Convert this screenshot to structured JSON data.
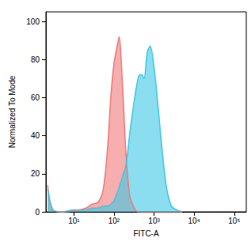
{
  "chart_data": {
    "type": "area",
    "x_label": "FITC-A",
    "y_label": "Normalized To Mode",
    "log": "x",
    "grid": false,
    "x": [
      2.2,
      3,
      5,
      10,
      20,
      28,
      40,
      54,
      70,
      83,
      100,
      115,
      135,
      160,
      200,
      250,
      340,
      400,
      450,
      490,
      560,
      680,
      800,
      1050,
      1300,
      1600,
      2000,
      2500,
      3000,
      5000
    ],
    "series": [
      {
        "color": "#f07878",
        "values": [
          14,
          1,
          0,
          0.5,
          2,
          4,
          5,
          12,
          35,
          60,
          78,
          85,
          92,
          70,
          30,
          8,
          1,
          0,
          0,
          0,
          0,
          0,
          0,
          0,
          0,
          0,
          0,
          0,
          0,
          0
        ]
      },
      {
        "color": "#3cc8e4",
        "values": [
          12,
          1,
          0,
          1,
          1,
          2,
          2,
          3,
          3,
          4,
          6,
          9,
          13,
          18,
          25,
          42,
          62,
          70,
          72,
          72,
          70,
          84,
          87,
          72,
          52,
          32,
          14,
          5,
          2,
          0
        ]
      }
    ],
    "xlim": [
      2,
      200000
    ],
    "xticks": [
      {
        "value": 10,
        "label": "10¹"
      },
      {
        "value": 100,
        "label": "10²"
      },
      {
        "value": 1000,
        "label": "10³"
      },
      {
        "value": 10000,
        "label": "10⁴"
      },
      {
        "value": 100000,
        "label": "10⁵"
      }
    ],
    "ylim": [
      0,
      105
    ],
    "yticks": [
      0,
      20,
      40,
      60,
      80,
      100
    ]
  }
}
